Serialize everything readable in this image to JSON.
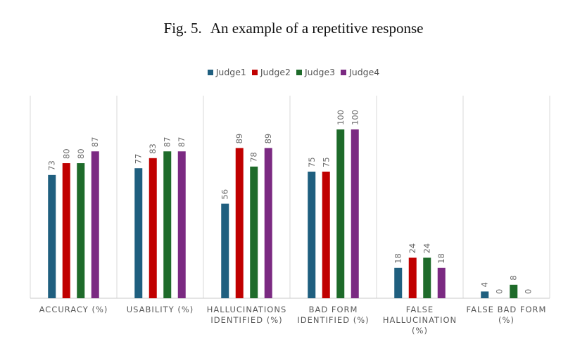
{
  "figure": {
    "label": "Fig. 5.",
    "title": "An example of a repetitive response"
  },
  "chart_data": {
    "type": "bar",
    "categories": [
      [
        "ACCURACY (%)"
      ],
      [
        "USABILITY (%)"
      ],
      [
        "HALLUCINATIONS",
        "IDENTIFIED (%)"
      ],
      [
        "BAD FORM",
        "IDENTIFIED (%)"
      ],
      [
        "FALSE",
        "HALLUCINATION",
        "(%)"
      ],
      [
        "FALSE BAD FORM",
        "(%)"
      ]
    ],
    "series": [
      {
        "name": "Judge1",
        "color": "#1f5f7f",
        "values": [
          73,
          77,
          56,
          75,
          18,
          4
        ]
      },
      {
        "name": "Judge2",
        "color": "#c00000",
        "values": [
          80,
          83,
          89,
          75,
          24,
          0
        ]
      },
      {
        "name": "Judge3",
        "color": "#1e6b2a",
        "values": [
          80,
          87,
          78,
          100,
          24,
          8
        ]
      },
      {
        "name": "Judge4",
        "color": "#7b2a82",
        "values": [
          87,
          87,
          89,
          100,
          18,
          0
        ]
      }
    ],
    "ylim": [
      0,
      120
    ],
    "grid": "vertical category separators",
    "legend_position": "top"
  }
}
